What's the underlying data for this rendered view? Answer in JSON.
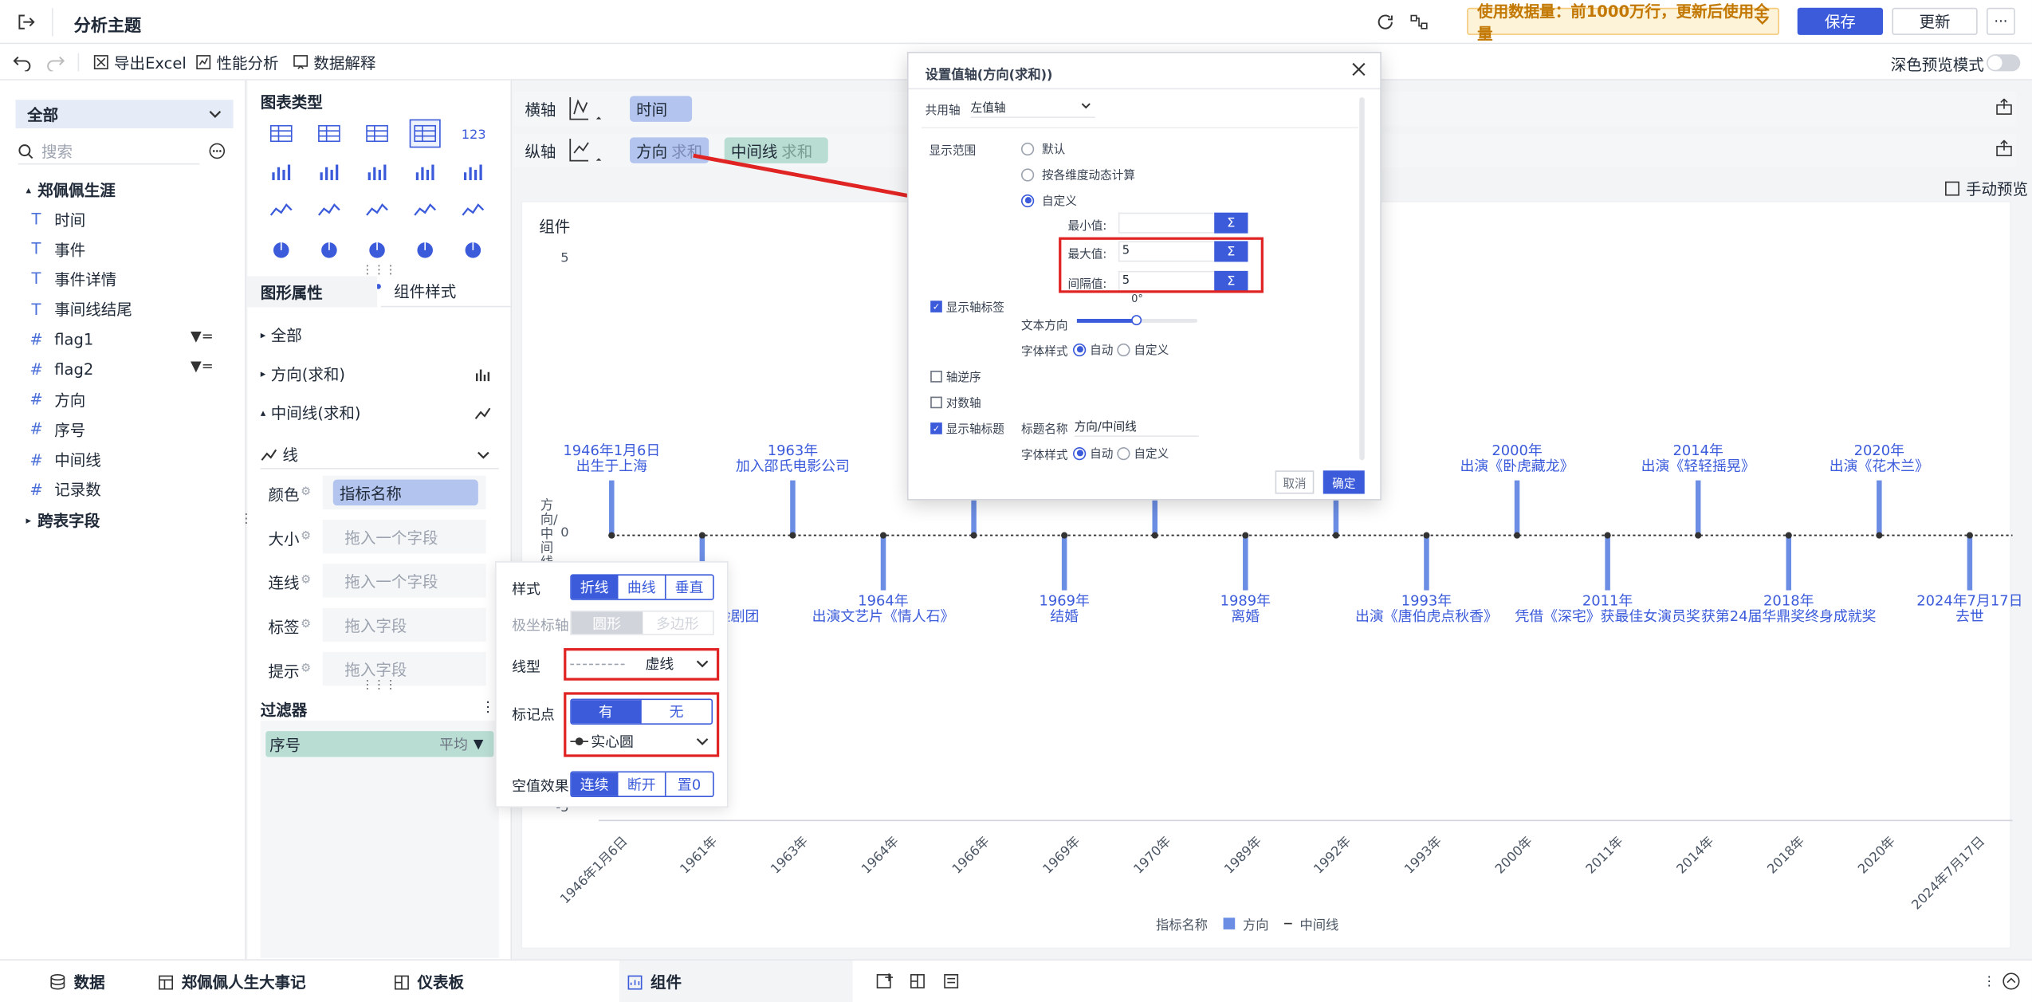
{
  "topbar": {
    "title": "分析主题",
    "notice": "使用数据量：前1000万行，更新后使用全量",
    "save": "保存",
    "update": "更新",
    "more": "···"
  },
  "toolbar": {
    "export": "导出Excel",
    "perf": "性能分析",
    "explain": "数据解释",
    "dark_mode": "深色预览模式"
  },
  "left": {
    "scope": "全部",
    "search_placeholder": "搜索",
    "table": "郑佩佩生涯",
    "fields": [
      {
        "type": "T",
        "name": "时间"
      },
      {
        "type": "T",
        "name": "事件"
      },
      {
        "type": "T",
        "name": "事件详情"
      },
      {
        "type": "T",
        "name": "事间线结尾"
      },
      {
        "type": "#",
        "name": "flag1"
      },
      {
        "type": "#",
        "name": "flag2"
      },
      {
        "type": "#",
        "name": "方向"
      },
      {
        "type": "#",
        "name": "序号"
      },
      {
        "type": "#",
        "name": "中间线"
      },
      {
        "type": "#",
        "name": "记录数"
      }
    ],
    "cross": "跨表字段"
  },
  "mid": {
    "chart_type_title": "图表类型",
    "tab_props": "图形属性",
    "tab_style": "组件样式",
    "all": "全部",
    "measure1": "方向(求和)",
    "measure2": "中间线(求和)",
    "mark_type": "线",
    "rows": [
      {
        "label": "颜色",
        "value": "指标名称"
      },
      {
        "label": "大小",
        "value": "拖入一个字段"
      },
      {
        "label": "连线",
        "value": "拖入一个字段"
      },
      {
        "label": "标签",
        "value": "拖入字段"
      },
      {
        "label": "提示",
        "value": "拖入字段"
      }
    ],
    "filter_title": "过滤器",
    "filter_field": "序号",
    "filter_agg": "平均"
  },
  "axes": {
    "x_label": "横轴",
    "x_field": "时间",
    "y_label": "纵轴",
    "y_field1": "方向",
    "y_field1_agg": "求和",
    "y_field2": "中间线",
    "y_field2_agg": "求和",
    "manual_preview": "手动预览"
  },
  "card": {
    "title": "组件",
    "legend_name": "指标名称",
    "legend_series1": "方向",
    "legend_series2": "中间线",
    "y_axis_title": "方向/中间线"
  },
  "chart_data": {
    "type": "line",
    "categories": [
      "1946年1月6日",
      "1961年",
      "1963年",
      "1964年",
      "1966年",
      "1969年",
      "1970年",
      "1989年",
      "1992年",
      "1993年",
      "2000年",
      "2011年",
      "2014年",
      "2018年",
      "2020年",
      "2024年7月17日"
    ],
    "series": [
      {
        "name": "方向",
        "values": [
          1,
          -1,
          1,
          -1,
          1,
          -1,
          1,
          -1,
          1,
          -1,
          1,
          -1,
          1,
          -1,
          1,
          -1
        ]
      },
      {
        "name": "中间线",
        "values": [
          0,
          0,
          0,
          0,
          0,
          0,
          0,
          0,
          0,
          0,
          0,
          0,
          0,
          0,
          0,
          0
        ]
      }
    ],
    "y_ticks": [
      "5",
      "0",
      "-5"
    ],
    "ylim": [
      -5,
      5
    ],
    "ylabel": "方向/中间线",
    "annotations": [
      {
        "x": "1946年1月6日",
        "lines": [
          "1946年1月6日",
          "出生于上海"
        ]
      },
      {
        "x": "1961年",
        "lines": [
          "1961年",
          "香港南国实验剧团"
        ]
      },
      {
        "x": "1963年",
        "lines": [
          "1963年",
          "加入邵氏电影公司"
        ]
      },
      {
        "x": "1964年",
        "lines": [
          "1964年",
          "出演文艺片《情人石》"
        ]
      },
      {
        "x": "1969年",
        "lines": [
          "1969年",
          "结婚"
        ]
      },
      {
        "x": "1989年",
        "lines": [
          "1989年",
          "离婚"
        ]
      },
      {
        "x": "1993年",
        "lines": [
          "1993年",
          "出演《唐伯虎点秋香》"
        ]
      },
      {
        "x": "2000年",
        "lines": [
          "2000年",
          "出演《卧虎藏龙》"
        ]
      },
      {
        "x": "2011年",
        "lines": [
          "2011年",
          "凭借《深宅》获最佳女演员奖"
        ]
      },
      {
        "x": "2014年",
        "lines": [
          "2014年",
          "出演《轻轻摇晃》"
        ]
      },
      {
        "x": "2018年",
        "lines": [
          "2018年",
          "获第24届华鼎奖终身成就奖"
        ]
      },
      {
        "x": "2020年",
        "lines": [
          "2020年",
          "出演《花木兰》"
        ]
      },
      {
        "x": "2024年7月17日",
        "lines": [
          "2024年7月17日",
          "去世"
        ]
      }
    ]
  },
  "dialog": {
    "title": "设置值轴(方向(求和))",
    "shared_axis_label": "共用轴",
    "shared_axis_value": "左值轴",
    "range_label": "显示范围",
    "opt_default": "默认",
    "opt_dynamic": "按各维度动态计算",
    "opt_custom": "自定义",
    "min_label": "最小值:",
    "max_label": "最大值:",
    "max_value": "5",
    "interval_label": "间隔值:",
    "interval_value": "5",
    "sigma": "Σ",
    "show_labels": "显示轴标签",
    "text_dir": "文本方向",
    "text_dir_value": "0°",
    "font_style": "字体样式",
    "auto": "自动",
    "custom": "自定义",
    "reverse": "轴逆序",
    "log": "对数轴",
    "show_title": "显示轴标题",
    "title_name_label": "标题名称",
    "title_name_value": "方向/中间线",
    "cancel": "取消",
    "ok": "确定"
  },
  "popup": {
    "style_label": "样式",
    "styles": [
      "折线",
      "曲线",
      "垂直"
    ],
    "polar_label": "极坐标轴",
    "polar": [
      "圆形",
      "多边形"
    ],
    "linetype_label": "线型",
    "linetype_value": "虚线",
    "marker_label": "标记点",
    "marker_opts": [
      "有",
      "无"
    ],
    "marker_shape": "实心圆",
    "null_label": "空值效果",
    "null_opts": [
      "连续",
      "断开",
      "置0"
    ]
  },
  "bottom": {
    "tabs": [
      "数据",
      "郑佩佩人生大事记",
      "仪表板",
      "组件"
    ]
  },
  "colors": {
    "accent": "#3b5bdb",
    "series": "#6b8de3",
    "annotation": "#e02424"
  }
}
